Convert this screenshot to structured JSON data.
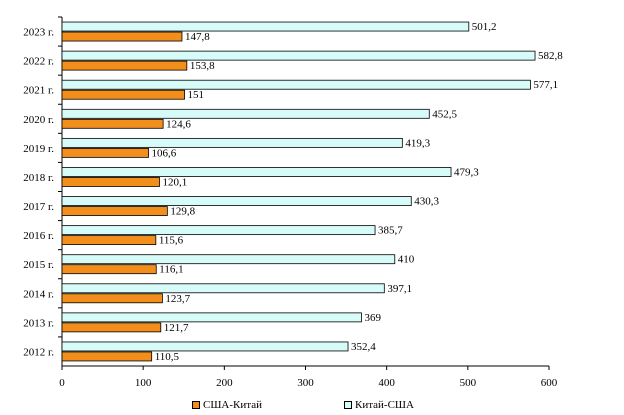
{
  "chart_data": {
    "type": "bar",
    "orientation": "horizontal",
    "categories": [
      "2012 г.",
      "2013 г.",
      "2014 г.",
      "2015 г.",
      "2016 г.",
      "2017 г.",
      "2018 г.",
      "2019 г.",
      "2020 г.",
      "2021 г.",
      "2022 г.",
      "2023 г."
    ],
    "series": [
      {
        "name": "США-Китай",
        "color": "#f28e1c",
        "values": [
          110.5,
          121.7,
          123.7,
          116.1,
          115.6,
          129.8,
          120.1,
          106.6,
          124.6,
          151,
          153.8,
          147.8
        ],
        "labels": [
          "110,5",
          "121,7",
          "123,7",
          "116,1",
          "115,6",
          "129,8",
          "120,1",
          "106,6",
          "124,6",
          "151",
          "153,8",
          "147,8"
        ]
      },
      {
        "name": "Китай-США",
        "color": "#d6fbf8",
        "values": [
          352.4,
          369,
          397.1,
          410,
          385.7,
          430.3,
          479.3,
          419.3,
          452.5,
          577.1,
          582.8,
          501.2
        ],
        "labels": [
          "352,4",
          "369",
          "397,1",
          "410",
          "385,7",
          "430,3",
          "479,3",
          "419,3",
          "452,5",
          "577,1",
          "582,8",
          "501,2"
        ]
      }
    ],
    "xlim": [
      0,
      600
    ],
    "xticks": [
      "0",
      "100",
      "200",
      "300",
      "400",
      "500",
      "600"
    ],
    "title": "",
    "xlabel": "",
    "ylabel": "",
    "grid": false,
    "legend_position": "bottom"
  }
}
